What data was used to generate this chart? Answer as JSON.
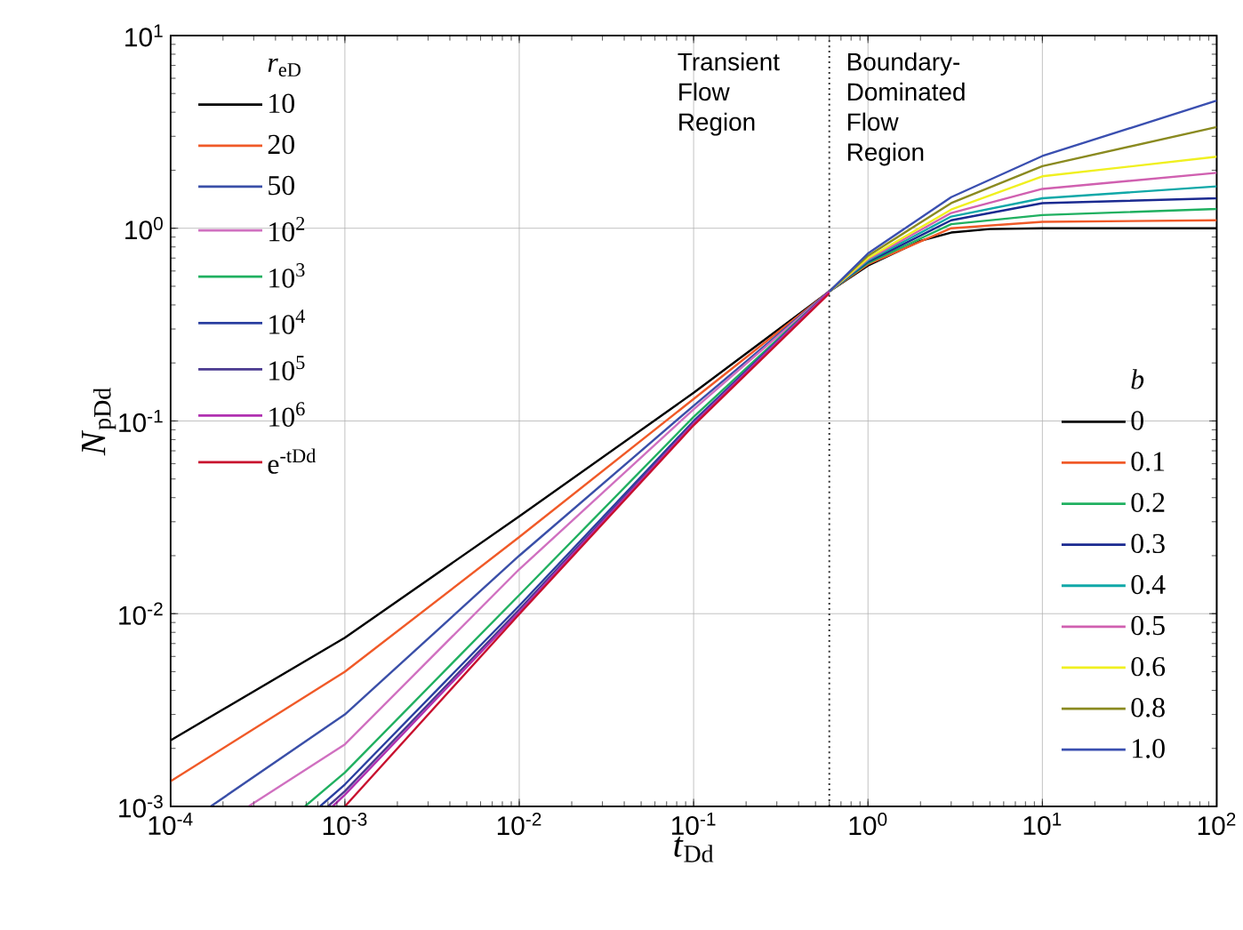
{
  "chart_data": [
    {
      "type": "line",
      "xlabel": "*t*$_{Dd}$",
      "ylabel": "*N*$_{pDd}$",
      "legend_title": "*r*$_{eD}$",
      "legend": "top left",
      "log": "xy",
      "grid": true,
      "xlim": [
        0.0001,
        100
      ],
      "ylim": [
        0.001,
        10
      ],
      "xticks": [
        {
          "value": 0.0001,
          "label": "10$^{-4}$"
        },
        {
          "value": 0.001,
          "label": "10$^{-3}$"
        },
        {
          "value": 0.01,
          "label": "10$^{-2}$"
        },
        {
          "value": 0.1,
          "label": "10$^{-1}$"
        },
        {
          "value": 1,
          "label": "10$^{0}$"
        },
        {
          "value": 10,
          "label": "10$^{1}$"
        },
        {
          "value": 100,
          "label": "10$^{2}$"
        }
      ],
      "yticks": [
        {
          "value": 0.001,
          "label": "10$^{-3}$"
        },
        {
          "value": 0.01,
          "label": "10$^{-2}$"
        },
        {
          "value": 0.1,
          "label": "10$^{-1}$"
        },
        {
          "value": 1,
          "label": "10$^{0}$"
        },
        {
          "value": 10,
          "label": "10$^{1}$"
        }
      ],
      "ref_lines": [
        {
          "axis": "x",
          "value": 0.6,
          "line_style": "dotted",
          "color": "#333333"
        }
      ],
      "annotations": [
        "Transient Flow Region",
        "Boundary-Dominated Flow Region"
      ],
      "series": [
        {
          "name": "10",
          "color": "#000000",
          "x": [
            0.0001,
            0.001,
            0.01,
            0.1,
            0.6
          ],
          "values": [
            0.0022,
            0.0075,
            0.032,
            0.14,
            0.47
          ]
        },
        {
          "name": "20",
          "color": "#f05a28",
          "x": [
            0.0001,
            0.001,
            0.01,
            0.1,
            0.6
          ],
          "values": [
            0.00135,
            0.005,
            0.025,
            0.13,
            0.47
          ]
        },
        {
          "name": "50",
          "color": "#3a4fa8",
          "x": [
            0.00017,
            0.001,
            0.01,
            0.1,
            0.6
          ],
          "values": [
            0.001,
            0.003,
            0.02,
            0.12,
            0.47
          ]
        },
        {
          "name": "10$^{2}$",
          "color": "#d070c0",
          "x": [
            0.00028,
            0.001,
            0.01,
            0.1,
            0.6
          ],
          "values": [
            0.001,
            0.0021,
            0.017,
            0.115,
            0.47
          ]
        },
        {
          "name": "10$^{3}$",
          "color": "#20b060",
          "x": [
            0.00059,
            0.001,
            0.01,
            0.1,
            0.6
          ],
          "values": [
            0.001,
            0.0015,
            0.0125,
            0.105,
            0.47
          ]
        },
        {
          "name": "10$^{4}$",
          "color": "#2a3fa0",
          "x": [
            0.00072,
            0.001,
            0.01,
            0.1,
            0.6
          ],
          "values": [
            0.001,
            0.0013,
            0.011,
            0.1,
            0.47
          ]
        },
        {
          "name": "10$^{5}$",
          "color": "#4a3a90",
          "x": [
            0.0008,
            0.001,
            0.01,
            0.1,
            0.6
          ],
          "values": [
            0.001,
            0.0012,
            0.0105,
            0.098,
            0.47
          ]
        },
        {
          "name": "10$^{6}$",
          "color": "#b030b0",
          "x": [
            0.00085,
            0.001,
            0.01,
            0.1,
            0.6
          ],
          "values": [
            0.001,
            0.00115,
            0.0102,
            0.097,
            0.47
          ]
        },
        {
          "name": "e$^{-tDd}$",
          "color": "#c8102e",
          "x": [
            0.001,
            0.01,
            0.1,
            0.6
          ],
          "values": [
            0.001,
            0.00995,
            0.095,
            0.46
          ]
        }
      ]
    },
    {
      "type": "line",
      "legend_title": "*b*",
      "legend": "bottom right",
      "log": "xy",
      "tick_labels": false,
      "xlim": [
        0.0001,
        100
      ],
      "ylim": [
        0.001,
        10
      ],
      "xticks": [
        0.0001,
        0.001,
        0.01,
        0.1,
        1,
        10,
        100
      ],
      "yticks": [
        0.001,
        0.01,
        0.1,
        1,
        10
      ],
      "series": [
        {
          "name": "0",
          "color": "#000000",
          "x": [
            0.6,
            1,
            2,
            3,
            5,
            10,
            100
          ],
          "values": [
            0.47,
            0.64,
            0.86,
            0.95,
            0.99,
            1.0,
            1.0
          ]
        },
        {
          "name": "0.1",
          "color": "#f05a28",
          "x": [
            0.6,
            1,
            3,
            10,
            100
          ],
          "values": [
            0.47,
            0.65,
            1.0,
            1.08,
            1.1
          ]
        },
        {
          "name": "0.2",
          "color": "#20b060",
          "x": [
            0.6,
            1,
            3,
            10,
            100
          ],
          "values": [
            0.47,
            0.66,
            1.05,
            1.17,
            1.26
          ]
        },
        {
          "name": "0.3",
          "color": "#1a2a90",
          "x": [
            0.6,
            1,
            3,
            10,
            100
          ],
          "values": [
            0.47,
            0.67,
            1.1,
            1.35,
            1.43
          ]
        },
        {
          "name": "0.4",
          "color": "#10a8a8",
          "x": [
            0.6,
            1,
            3,
            10,
            100
          ],
          "values": [
            0.47,
            0.68,
            1.15,
            1.43,
            1.65
          ]
        },
        {
          "name": "0.5",
          "color": "#d060b0",
          "x": [
            0.6,
            1,
            3,
            10,
            100
          ],
          "values": [
            0.47,
            0.69,
            1.2,
            1.6,
            1.94
          ]
        },
        {
          "name": "0.6",
          "color": "#f0f020",
          "x": [
            0.6,
            1,
            3,
            10,
            100
          ],
          "values": [
            0.47,
            0.7,
            1.25,
            1.86,
            2.35
          ]
        },
        {
          "name": "0.8",
          "color": "#8a8a20",
          "x": [
            0.6,
            1,
            3,
            10,
            100
          ],
          "values": [
            0.47,
            0.72,
            1.35,
            2.1,
            3.35
          ]
        },
        {
          "name": "1.0",
          "color": "#3a4fb0",
          "x": [
            0.6,
            1,
            3,
            10,
            100
          ],
          "values": [
            0.47,
            0.74,
            1.45,
            2.37,
            4.6
          ]
        }
      ]
    }
  ]
}
